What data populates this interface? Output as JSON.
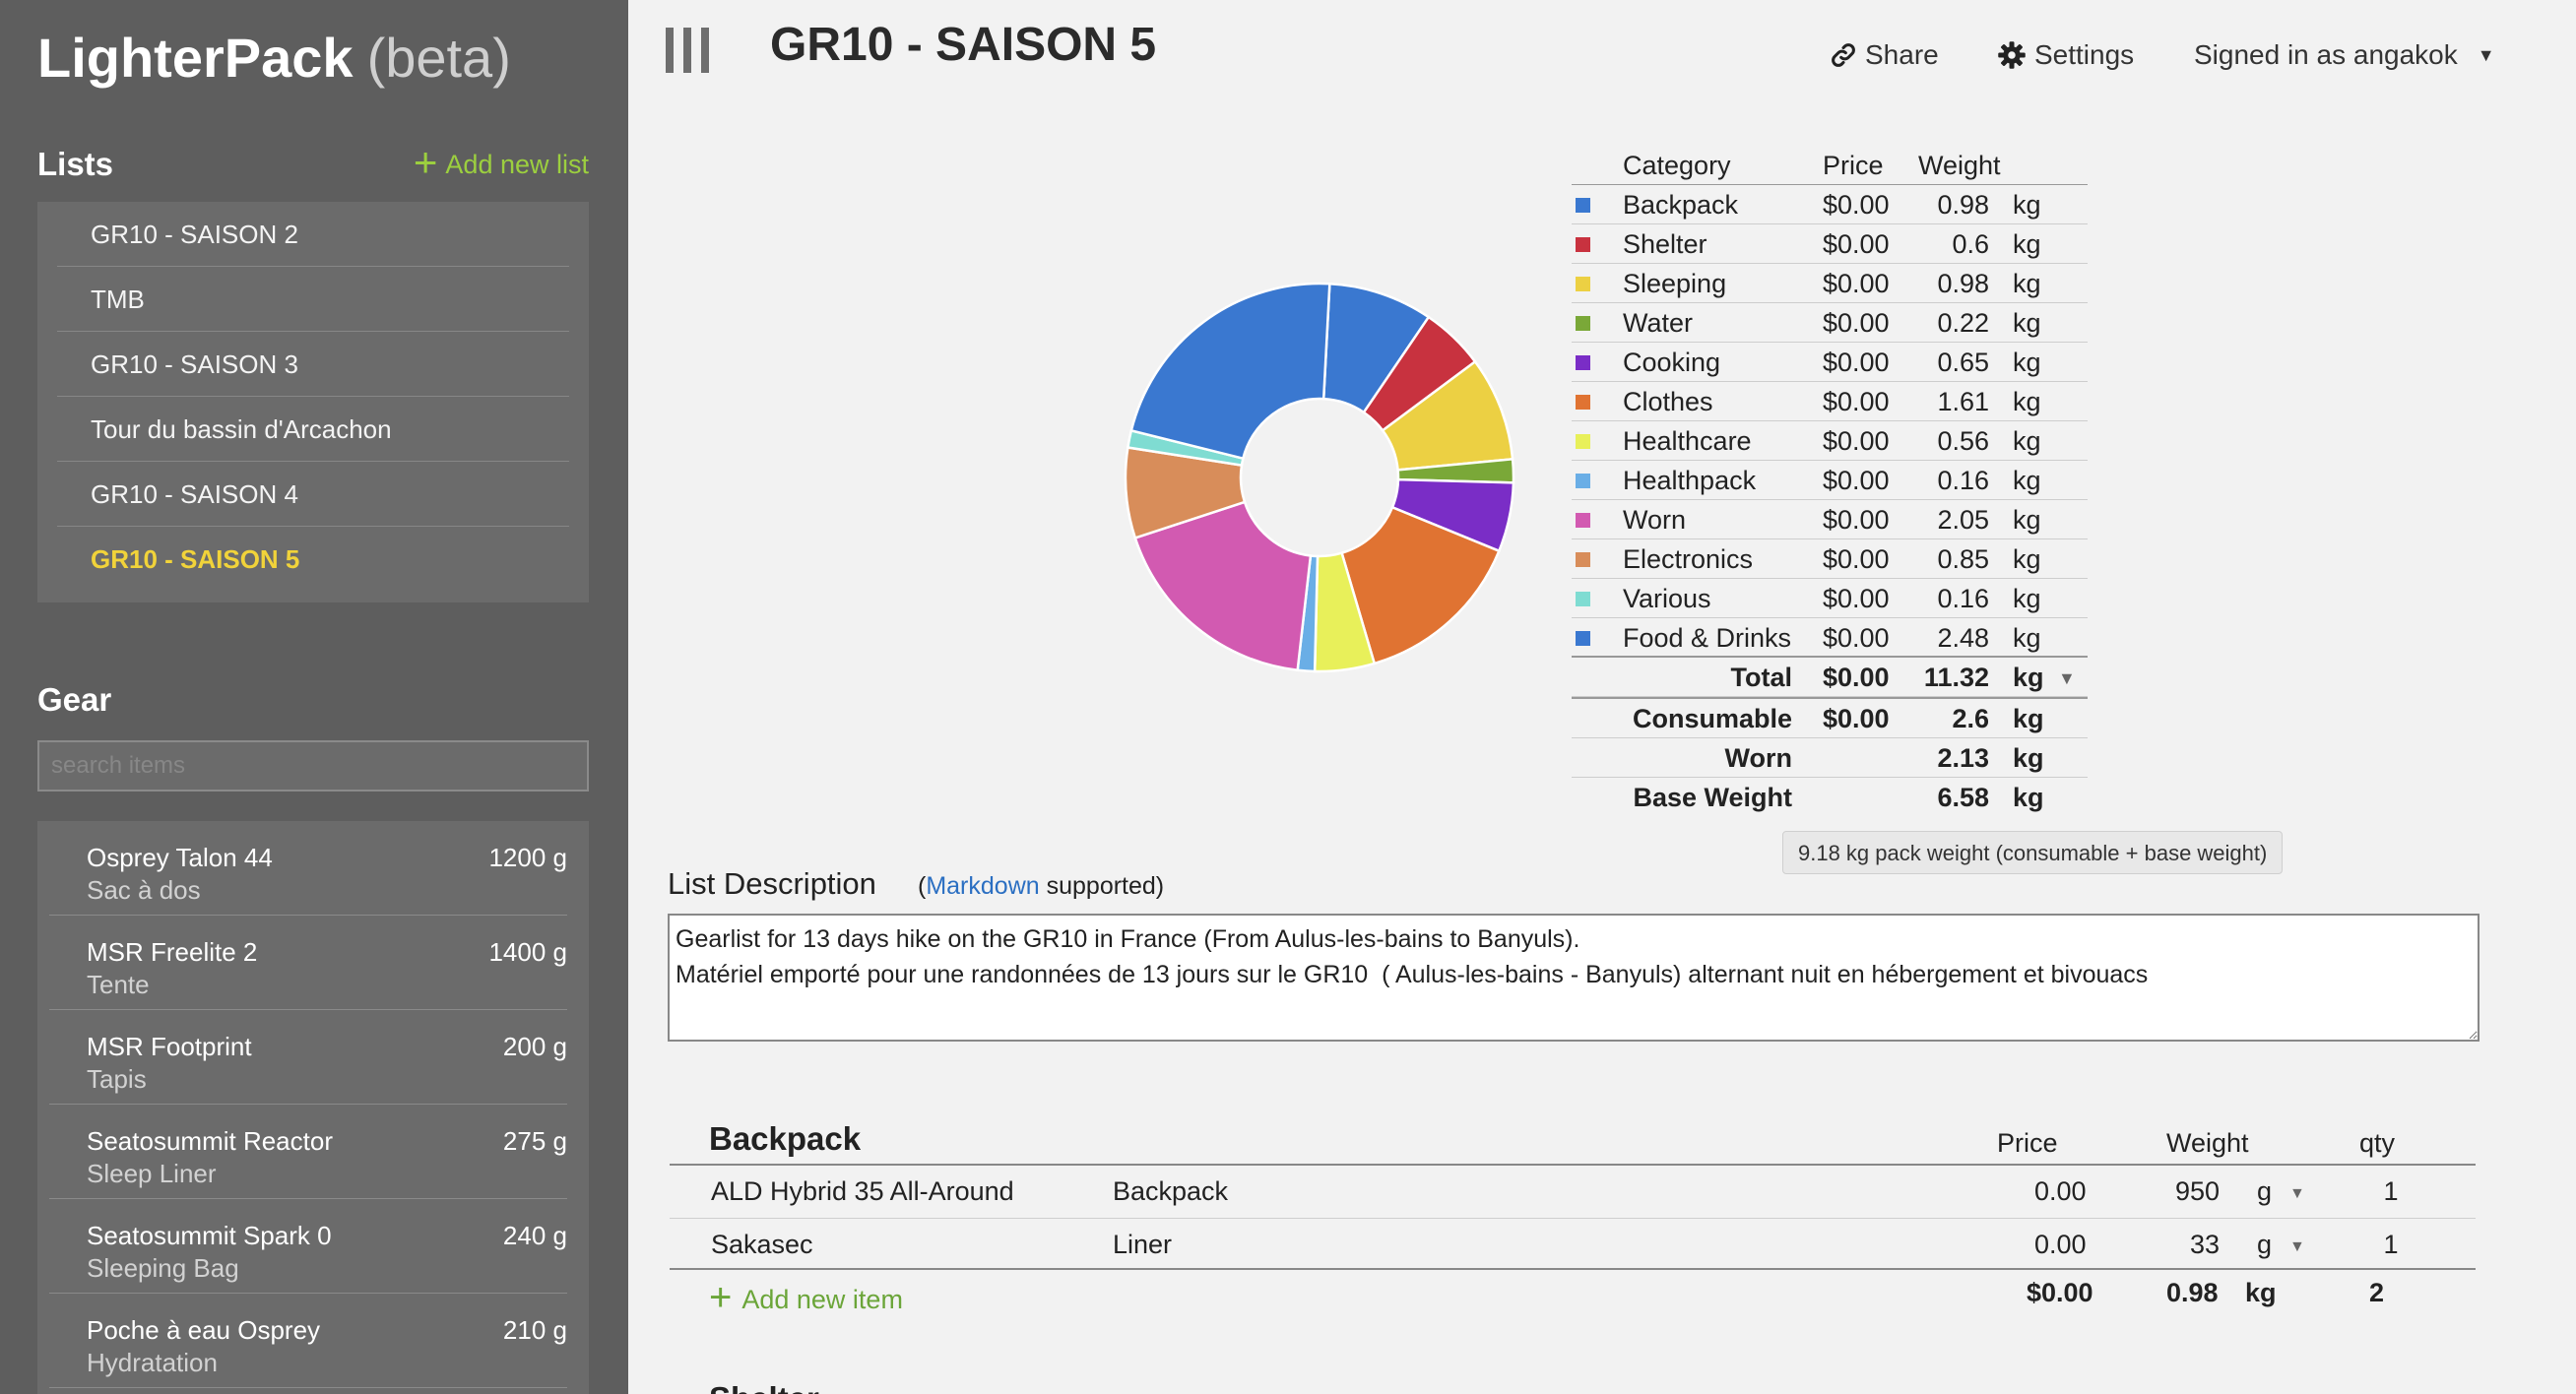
{
  "brand": {
    "name": "LighterPack",
    "beta": "(beta)"
  },
  "lists_section": {
    "title": "Lists",
    "add_label": "Add new list",
    "items": [
      {
        "label": "GR10 - SAISON 2",
        "active": false
      },
      {
        "label": "TMB",
        "active": false
      },
      {
        "label": "GR10 - SAISON 3",
        "active": false
      },
      {
        "label": "Tour du bassin d'Arcachon",
        "active": false
      },
      {
        "label": "GR10 - SAISON 4",
        "active": false
      },
      {
        "label": "GR10 - SAISON 5",
        "active": true
      }
    ]
  },
  "gear_section": {
    "title": "Gear",
    "search_placeholder": "search items",
    "items": [
      {
        "name": "Osprey Talon 44",
        "desc": "Sac à dos",
        "weight": "1200 g"
      },
      {
        "name": "MSR Freelite 2",
        "desc": "Tente",
        "weight": "1400 g"
      },
      {
        "name": "MSR Footprint",
        "desc": "Tapis",
        "weight": "200 g"
      },
      {
        "name": "Seatosummit Reactor",
        "desc": "Sleep Liner",
        "weight": "275 g"
      },
      {
        "name": "Seatosummit Spark 0",
        "desc": "Sleeping Bag",
        "weight": "240 g"
      },
      {
        "name": "Poche à eau Osprey",
        "desc": "Hydratation",
        "weight": "210 g"
      }
    ]
  },
  "header": {
    "title": "GR10 - SAISON 5",
    "share_label": "Share",
    "settings_label": "Settings",
    "account_label": "Signed in as angakok"
  },
  "summary": {
    "headers": {
      "category": "Category",
      "price": "Price",
      "weight": "Weight"
    },
    "rows": [
      {
        "category": "Backpack",
        "price": "$0.00",
        "weight": "0.98",
        "unit": "kg",
        "color": "#3a78d0"
      },
      {
        "category": "Shelter",
        "price": "$0.00",
        "weight": "0.6",
        "unit": "kg",
        "color": "#c8323f"
      },
      {
        "category": "Sleeping",
        "price": "$0.00",
        "weight": "0.98",
        "unit": "kg",
        "color": "#ecd043"
      },
      {
        "category": "Water",
        "price": "$0.00",
        "weight": "0.22",
        "unit": "kg",
        "color": "#7aa838"
      },
      {
        "category": "Cooking",
        "price": "$0.00",
        "weight": "0.65",
        "unit": "kg",
        "color": "#7a2dc6"
      },
      {
        "category": "Clothes",
        "price": "$0.00",
        "weight": "1.61",
        "unit": "kg",
        "color": "#e07332"
      },
      {
        "category": "Healthcare",
        "price": "$0.00",
        "weight": "0.56",
        "unit": "kg",
        "color": "#e8f05a"
      },
      {
        "category": "Healthpack",
        "price": "$0.00",
        "weight": "0.16",
        "unit": "kg",
        "color": "#6aaee6"
      },
      {
        "category": "Worn",
        "price": "$0.00",
        "weight": "2.05",
        "unit": "kg",
        "color": "#d25ab1"
      },
      {
        "category": "Electronics",
        "price": "$0.00",
        "weight": "0.85",
        "unit": "kg",
        "color": "#d88d5a"
      },
      {
        "category": "Various",
        "price": "$0.00",
        "weight": "0.16",
        "unit": "kg",
        "color": "#7fdcd2"
      },
      {
        "category": "Food & Drinks",
        "price": "$0.00",
        "weight": "2.48",
        "unit": "kg",
        "color": "#3a78d0"
      }
    ],
    "total": {
      "label": "Total",
      "price": "$0.00",
      "weight": "11.32",
      "unit": "kg"
    },
    "consumable": {
      "label": "Consumable",
      "price": "$0.00",
      "weight": "2.6",
      "unit": "kg"
    },
    "worn": {
      "label": "Worn",
      "weight": "2.13",
      "unit": "kg"
    },
    "base": {
      "label": "Base Weight",
      "weight": "6.58",
      "unit": "kg"
    },
    "tooltip": "9.18 kg pack weight (consumable + base weight)"
  },
  "chart_data": {
    "type": "pie",
    "donut": true,
    "categories": [
      "Backpack",
      "Shelter",
      "Sleeping",
      "Water",
      "Cooking",
      "Clothes",
      "Healthcare",
      "Healthpack",
      "Worn",
      "Electronics",
      "Various",
      "Food & Drinks"
    ],
    "values": [
      0.98,
      0.6,
      0.98,
      0.22,
      0.65,
      1.61,
      0.56,
      0.16,
      2.05,
      0.85,
      0.16,
      2.48
    ],
    "unit": "kg"
  },
  "description": {
    "label": "List Description",
    "note_open": "(",
    "note_link": "Markdown",
    "note_close": " supported)",
    "text": "Gearlist for 13 days hike on the GR10 in France (From Aulus-les-bains to Banyuls).\nMatériel emporté pour une randonnées de 13 jours sur le GR10  ( Aulus-les-bains - Banyuls) alternant nuit en hébergement et bivouacs"
  },
  "category_table": {
    "title": "Backpack",
    "headers": {
      "price": "Price",
      "weight": "Weight",
      "qty": "qty"
    },
    "items": [
      {
        "name": "ALD Hybrid 35 All-Around",
        "desc": "Backpack",
        "price": "0.00",
        "weight": "950",
        "unit": "g",
        "qty": "1"
      },
      {
        "name": "Sakasec",
        "desc": "Liner",
        "price": "0.00",
        "weight": "33",
        "unit": "g",
        "qty": "1"
      }
    ],
    "add_label": "Add new item",
    "totals": {
      "price": "$0.00",
      "weight": "0.98",
      "unit": "kg",
      "qty": "2"
    },
    "next_title": "Shelter"
  }
}
